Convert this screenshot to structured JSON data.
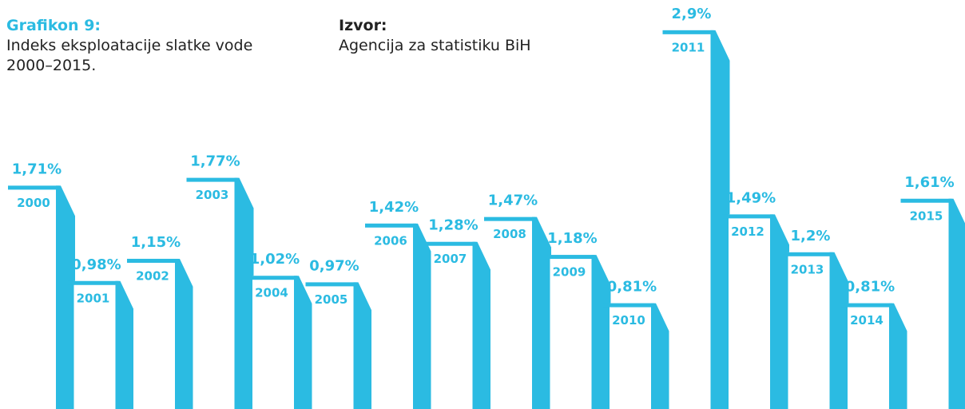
{
  "chart_data": {
    "type": "bar",
    "title": "Grafikon 9:",
    "subtitle": "Indeks eksploatacije slatke vode 2000–2015.",
    "source_title": "Izvor:",
    "source": "Agencija za statistiku BiH",
    "categories": [
      "2000",
      "2001",
      "2002",
      "2003",
      "2004",
      "2005",
      "2006",
      "2007",
      "2008",
      "2009",
      "2010",
      "2011",
      "2012",
      "2013",
      "2014",
      "2015"
    ],
    "values": [
      1.71,
      0.98,
      1.15,
      1.77,
      1.02,
      0.97,
      1.42,
      1.28,
      1.47,
      1.18,
      0.81,
      2.9,
      1.49,
      1.2,
      0.81,
      1.61
    ],
    "value_labels": [
      "1,71%",
      "0,98%",
      "1,15%",
      "1,77%",
      "1,02%",
      "0,97%",
      "1,42%",
      "1,28%",
      "1,47%",
      "1,18%",
      "0,81%",
      "2,9%",
      "1,49%",
      "1,2%",
      "0,81%",
      "1,61%"
    ],
    "color": "#2bbbe2"
  }
}
